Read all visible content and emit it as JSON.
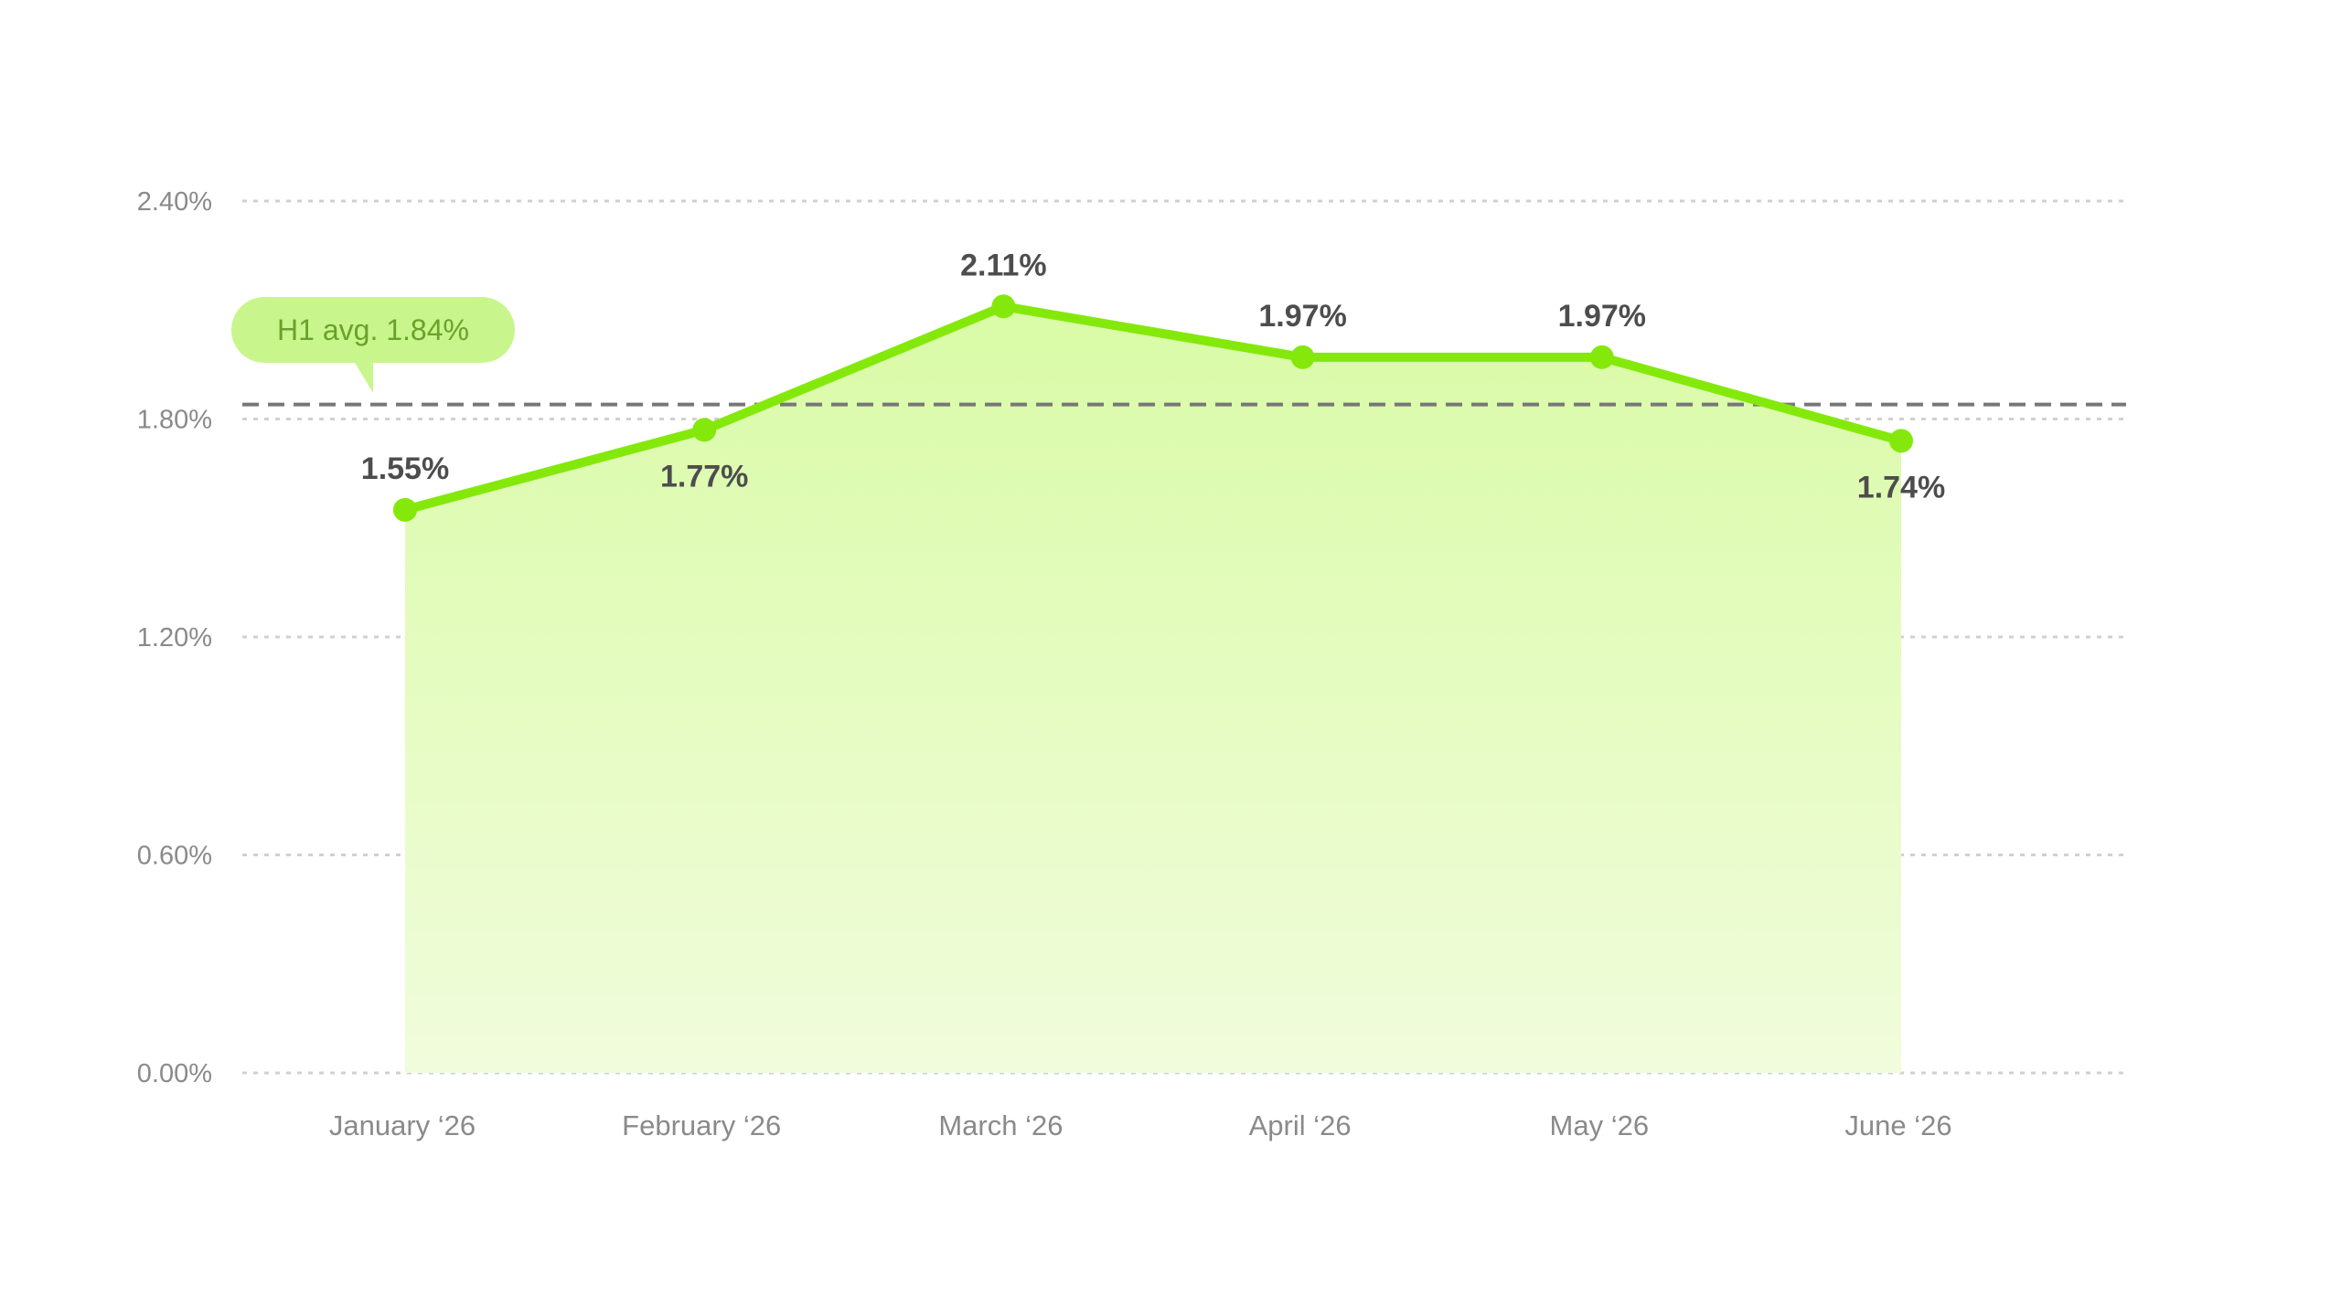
{
  "chart_data": {
    "type": "area",
    "title": "",
    "xlabel": "",
    "ylabel": "",
    "categories": [
      "January ‘26",
      "February ‘26",
      "March ‘26",
      "April ‘26",
      "May ‘26",
      "June ‘26"
    ],
    "series": [
      {
        "values": [
          1.55,
          1.77,
          2.11,
          1.97,
          1.97,
          1.74
        ],
        "labels": [
          "1.55%",
          "1.77%",
          "2.11%",
          "1.97%",
          "1.97%",
          "1.74%"
        ],
        "label_positions": [
          "above",
          "below",
          "above",
          "above",
          "above",
          "below"
        ]
      }
    ],
    "ylim": [
      0,
      2.4
    ],
    "yticks": [
      0,
      0.6,
      1.2,
      1.8,
      2.4
    ],
    "ytick_labels": [
      "0.00%",
      "0.60%",
      "1.20%",
      "1.80%",
      "2.40%"
    ],
    "grid": true,
    "reference_line": {
      "value": 1.84,
      "label": "H1 avg. 1.84%"
    },
    "colors": {
      "line": "#84e90b",
      "area_top": "#d9fba6",
      "area_bottom": "#f1fcdc",
      "badge": "#c8f58c",
      "badge_text": "#6aa12a",
      "reference": "#777777",
      "grid": "#d0d0d0"
    }
  }
}
